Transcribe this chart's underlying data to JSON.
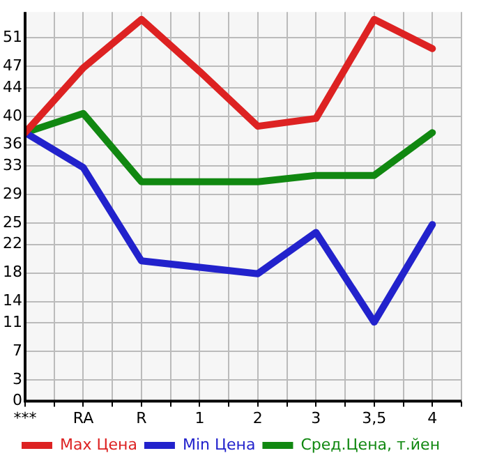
{
  "chart_data": {
    "type": "line",
    "categories": [
      "***",
      "RA",
      "R",
      "1",
      "2",
      "3",
      "3,5",
      "4"
    ],
    "series": [
      {
        "name": "Max Цена",
        "color": "#dd2222",
        "values": [
          37.7,
          46.8,
          53.6,
          46.3,
          38.6,
          39.7,
          53.6,
          49.5
        ]
      },
      {
        "name": "Min Цена",
        "color": "#2222cc",
        "values": [
          37.7,
          32.8,
          19.7,
          18.8,
          17.9,
          23.7,
          11.1,
          24.8
        ]
      },
      {
        "name": "Сред.Цена, т.йен",
        "color": "#118811",
        "values": [
          37.7,
          40.4,
          30.8,
          30.8,
          30.8,
          31.7,
          31.7,
          37.7
        ]
      }
    ],
    "ylim": [
      0,
      54.64
    ],
    "yticks": [
      0,
      3,
      7,
      11,
      14,
      18,
      22,
      25,
      29,
      33,
      36,
      40,
      44,
      47,
      51
    ],
    "grid": true,
    "legend": "bottom",
    "marker": "none",
    "line_style": "solid"
  }
}
